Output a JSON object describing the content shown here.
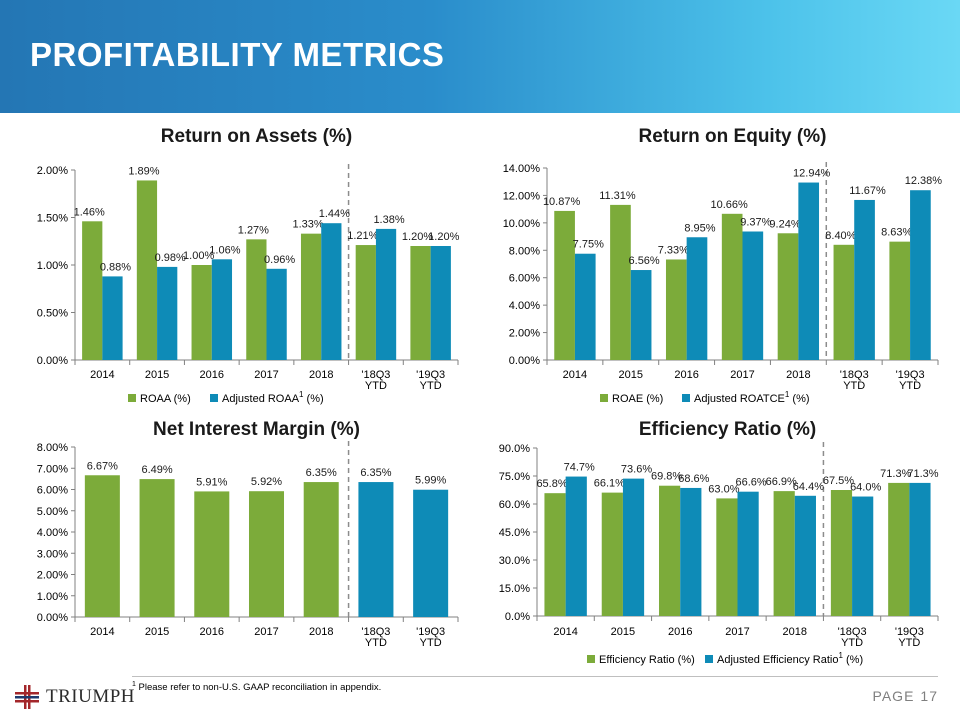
{
  "header": {
    "title": "PROFITABILITY METRICS"
  },
  "colors": {
    "green": "#7cab3a",
    "blue": "#0e8bb7",
    "divider": "#8c8c8c"
  },
  "footnote": {
    "marker": "1",
    "text": "Please refer to non-U.S. GAAP reconciliation in appendix."
  },
  "footer": {
    "logo_text": "TRIUMPH",
    "page_label": "PAGE",
    "page_number": "17"
  },
  "chart_data": [
    {
      "id": "roa",
      "type": "bar",
      "title": "Return on Assets (%)",
      "categories": [
        [
          "2014"
        ],
        [
          "2015"
        ],
        [
          "2016"
        ],
        [
          "2017"
        ],
        [
          "2018"
        ],
        [
          "'18Q3",
          "YTD"
        ],
        [
          "'19Q3",
          "YTD"
        ]
      ],
      "series": [
        {
          "name": "ROAA (%)",
          "color": "green",
          "values": [
            1.46,
            1.89,
            1.0,
            1.27,
            1.33,
            1.21,
            1.2
          ],
          "labels": [
            "1.46%",
            "1.89%",
            "1.00%",
            "1.27%",
            "1.33%",
            "1.21%",
            "1.20%"
          ]
        },
        {
          "name": "Adjusted ROAA",
          "superscript": "1",
          "suffix": " (%)",
          "color": "blue",
          "values": [
            0.88,
            0.98,
            1.06,
            0.96,
            1.44,
            1.38,
            1.2
          ],
          "labels": [
            "0.88%",
            "0.98%",
            "1.06%",
            "0.96%",
            "1.44%",
            "1.38%",
            "1.20%"
          ]
        }
      ],
      "ylim": [
        0,
        2.0
      ],
      "ticks": [
        "0.00%",
        "0.50%",
        "1.00%",
        "1.50%",
        "2.00%"
      ],
      "legend": "bottom"
    },
    {
      "id": "roe",
      "type": "bar",
      "title": "Return on Equity (%)",
      "categories": [
        [
          "2014"
        ],
        [
          "2015"
        ],
        [
          "2016"
        ],
        [
          "2017"
        ],
        [
          "2018"
        ],
        [
          "'18Q3",
          "YTD"
        ],
        [
          "'19Q3",
          "YTD"
        ]
      ],
      "series": [
        {
          "name": "ROAE (%)",
          "color": "green",
          "values": [
            10.87,
            11.31,
            7.33,
            10.66,
            9.24,
            8.4,
            8.63
          ],
          "labels": [
            "10.87%",
            "11.31%",
            "7.33%",
            "10.66%",
            "9.24%",
            "8.40%",
            "8.63%"
          ]
        },
        {
          "name": "Adjusted ROATCE",
          "superscript": "1",
          "suffix": " (%)",
          "color": "blue",
          "values": [
            7.75,
            6.56,
            8.95,
            9.37,
            12.94,
            11.67,
            12.38
          ],
          "labels": [
            "7.75%",
            "6.56%",
            "8.95%",
            "9.37%",
            "12.94%",
            "11.67%",
            "12.38%"
          ]
        }
      ],
      "ylim": [
        0,
        14.0
      ],
      "ticks": [
        "0.00%",
        "2.00%",
        "4.00%",
        "6.00%",
        "8.00%",
        "10.00%",
        "12.00%",
        "14.00%"
      ],
      "legend": "bottom"
    },
    {
      "id": "nim",
      "type": "bar",
      "title": "Net Interest Margin (%)",
      "categories": [
        [
          "2014"
        ],
        [
          "2015"
        ],
        [
          "2016"
        ],
        [
          "2017"
        ],
        [
          "2018"
        ],
        [
          "'18Q3",
          "YTD"
        ],
        [
          "'19Q3",
          "YTD"
        ]
      ],
      "series": [
        {
          "name": "Net Interest Margin (%)",
          "colors": [
            "green",
            "green",
            "green",
            "green",
            "green",
            "blue",
            "blue"
          ],
          "values": [
            6.67,
            6.49,
            5.91,
            5.92,
            6.35,
            6.35,
            5.99
          ],
          "labels": [
            "6.67%",
            "6.49%",
            "5.91%",
            "5.92%",
            "6.35%",
            "6.35%",
            "5.99%"
          ]
        }
      ],
      "ylim": [
        0,
        8.0
      ],
      "ticks": [
        "0.00%",
        "1.00%",
        "2.00%",
        "3.00%",
        "4.00%",
        "5.00%",
        "6.00%",
        "7.00%",
        "8.00%"
      ],
      "legend": "none"
    },
    {
      "id": "eff",
      "type": "bar",
      "title": "Efficiency Ratio (%)",
      "categories": [
        [
          "2014"
        ],
        [
          "2015"
        ],
        [
          "2016"
        ],
        [
          "2017"
        ],
        [
          "2018"
        ],
        [
          "'18Q3",
          "YTD"
        ],
        [
          "'19Q3",
          "YTD"
        ]
      ],
      "series": [
        {
          "name": "Efficiency Ratio (%)",
          "color": "green",
          "values": [
            65.8,
            66.1,
            69.8,
            63.0,
            66.9,
            67.5,
            71.3
          ],
          "labels": [
            "65.8%",
            "66.1%",
            "69.8%",
            "63.0%",
            "66.9%",
            "67.5%",
            "71.3%"
          ]
        },
        {
          "name": "Adjusted Efficiency Ratio",
          "superscript": "1",
          "suffix": " (%)",
          "color": "blue",
          "values": [
            74.7,
            73.6,
            68.6,
            66.6,
            64.4,
            64.0,
            71.3
          ],
          "labels": [
            "74.7%",
            "73.6%",
            "68.6%",
            "66.6%",
            "64.4%",
            "64.0%",
            "71.3%"
          ]
        }
      ],
      "ylim": [
        0,
        90.0
      ],
      "ticks": [
        "0.0%",
        "15.0%",
        "30.0%",
        "45.0%",
        "60.0%",
        "75.0%",
        "90.0%"
      ],
      "legend": "bottom"
    }
  ]
}
